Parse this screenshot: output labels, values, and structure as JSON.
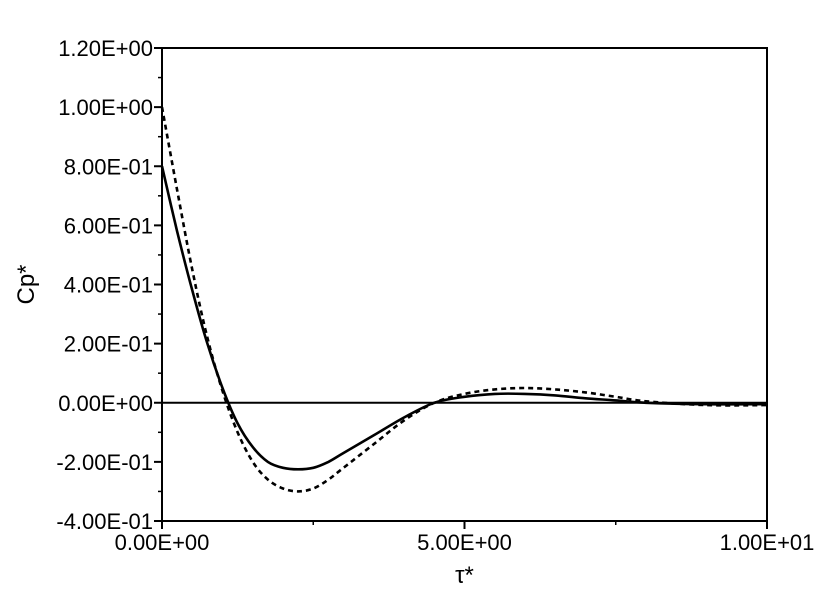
{
  "chart_data": {
    "type": "line",
    "title": "",
    "xlabel": "τ*",
    "ylabel": "Cp*",
    "xlim": [
      0,
      10
    ],
    "ylim": [
      -0.4,
      1.2
    ],
    "xticks": [
      0,
      5,
      10
    ],
    "xtick_labels": [
      "0.00E+00",
      "5.00E+00",
      "1.00E+01"
    ],
    "yticks": [
      -0.4,
      -0.2,
      0,
      0.2,
      0.4,
      0.6,
      0.8,
      1.0,
      1.2
    ],
    "ytick_labels": [
      "-4.00E-01",
      "-2.00E-01",
      "0.00E+00",
      "2.00E-01",
      "4.00E-01",
      "6.00E-01",
      "8.00E-01",
      "1.00E+00",
      "1.20E+00"
    ],
    "grid": false,
    "zero_line": true,
    "series": [
      {
        "style": "solid",
        "color": "#000000",
        "x": [
          0,
          0.25,
          0.5,
          0.75,
          1.0,
          1.25,
          1.5,
          1.75,
          2.0,
          2.25,
          2.5,
          2.75,
          3.0,
          3.5,
          4.0,
          4.5,
          5.0,
          5.5,
          6.0,
          6.5,
          7.0,
          7.5,
          8.0,
          9.0,
          10.0
        ],
        "y": [
          0.8,
          0.58,
          0.38,
          0.2,
          0.05,
          -0.07,
          -0.15,
          -0.2,
          -0.22,
          -0.225,
          -0.22,
          -0.2,
          -0.17,
          -0.11,
          -0.05,
          0.0,
          0.02,
          0.03,
          0.03,
          0.025,
          0.015,
          0.008,
          0.0,
          -0.005,
          -0.005
        ]
      },
      {
        "style": "dashed",
        "color": "#000000",
        "x": [
          0,
          0.25,
          0.5,
          0.75,
          1.0,
          1.25,
          1.5,
          1.75,
          2.0,
          2.25,
          2.5,
          2.75,
          3.0,
          3.5,
          4.0,
          4.5,
          5.0,
          5.5,
          6.0,
          6.5,
          7.0,
          7.5,
          8.0,
          9.0,
          10.0
        ],
        "y": [
          1.0,
          0.72,
          0.45,
          0.22,
          0.04,
          -0.1,
          -0.2,
          -0.26,
          -0.29,
          -0.3,
          -0.29,
          -0.26,
          -0.22,
          -0.14,
          -0.06,
          0.0,
          0.03,
          0.045,
          0.05,
          0.045,
          0.035,
          0.02,
          0.005,
          -0.008,
          -0.008
        ]
      }
    ]
  }
}
